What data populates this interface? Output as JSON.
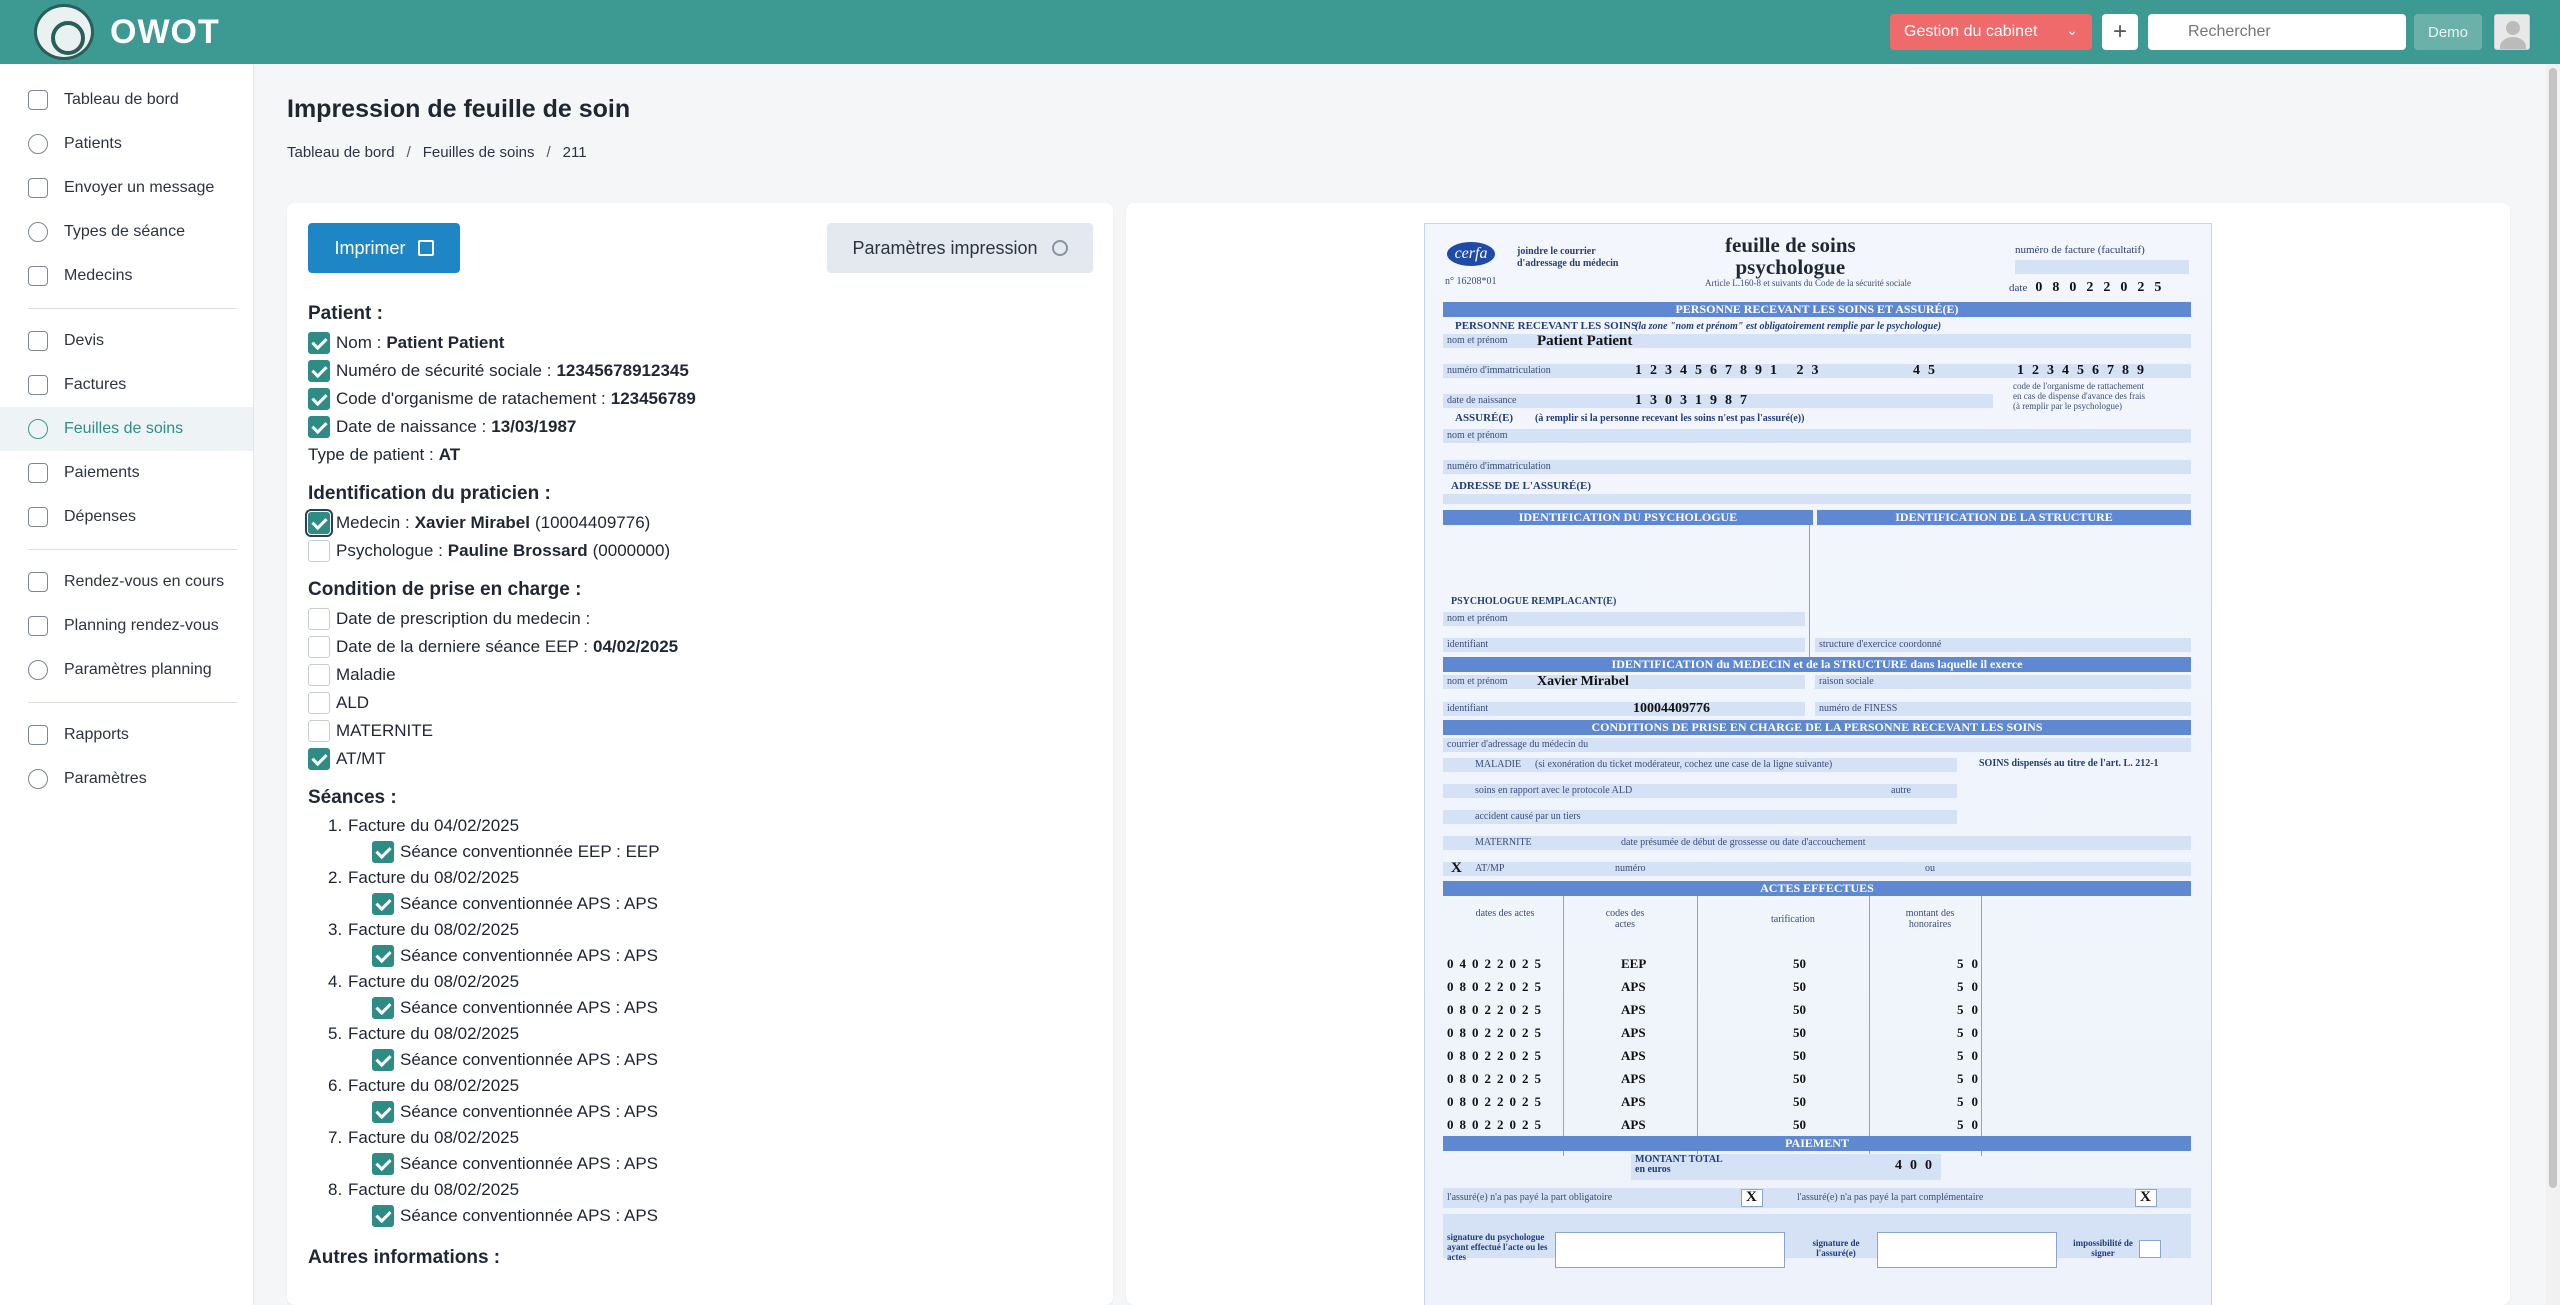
{
  "app": {
    "brand": "OWOT"
  },
  "header": {
    "gestion_label": "Gestion du cabinet",
    "plus_label": "+",
    "search_placeholder": "Rechercher",
    "demo_label": "Demo"
  },
  "sidebar": {
    "items": [
      {
        "label": "Tableau de bord",
        "icon": "home-icon"
      },
      {
        "label": "Patients",
        "icon": "user-icon"
      },
      {
        "label": "Envoyer un message",
        "icon": "mail-icon"
      },
      {
        "label": "Types de séance",
        "icon": "star-icon"
      },
      {
        "label": "Medecins",
        "icon": "graduation-cap-icon"
      },
      {
        "label": "Devis",
        "icon": "document-icon"
      },
      {
        "label": "Factures",
        "icon": "file-icon"
      },
      {
        "label": "Feuilles de soins",
        "icon": "share-icon"
      },
      {
        "label": "Paiements",
        "icon": "receipt-icon"
      },
      {
        "label": "Dépenses",
        "icon": "clipboard-icon"
      },
      {
        "label": "Rendez-vous en cours",
        "icon": "calendar-icon"
      },
      {
        "label": "Planning rendez-vous",
        "icon": "calendar-icon"
      },
      {
        "label": "Paramètres planning",
        "icon": "gear-icon"
      },
      {
        "label": "Rapports",
        "icon": "bar-chart-icon"
      },
      {
        "label": "Paramètres",
        "icon": "gear-icon"
      }
    ]
  },
  "page": {
    "title": "Impression de feuille de soin",
    "breadcrumb": [
      "Tableau de bord",
      "Feuilles de soins",
      "211"
    ],
    "print_label": "Imprimer",
    "params_label": "Paramètres impression"
  },
  "form": {
    "patient": {
      "title": "Patient :",
      "nom_label": "Nom :",
      "nom_value": "Patient Patient",
      "nss_label": "Numéro de sécurité sociale :",
      "nss_value": "12345678912345",
      "org_label": "Code d'organisme de ratachement :",
      "org_value": "123456789",
      "dob_label": "Date de naissance :",
      "dob_value": "13/03/1987",
      "type_label": "Type de patient :",
      "type_value": "AT"
    },
    "praticien": {
      "title": "Identification du praticien :",
      "medecin_label": "Medecin :",
      "medecin_value": "Xavier Mirabel",
      "medecin_id": "(10004409776)",
      "psy_label": "Psychologue :",
      "psy_value": "Pauline Brossard",
      "psy_id": "(0000000)"
    },
    "condition": {
      "title": "Condition de prise en charge :",
      "prescription_label": "Date de prescription du medecin :",
      "derniere_label": "Date de la derniere séance EEP :",
      "derniere_value": "04/02/2025",
      "maladie": "Maladie",
      "ald": "ALD",
      "maternite": "MATERNITE",
      "atmt": "AT/MT"
    },
    "seances": {
      "title": "Séances :",
      "items": [
        {
          "num": "1.",
          "facture": "Facture du 04/02/2025",
          "seance": "Séance conventionnée EEP : EEP"
        },
        {
          "num": "2.",
          "facture": "Facture du 08/02/2025",
          "seance": "Séance conventionnée APS : APS"
        },
        {
          "num": "3.",
          "facture": "Facture du 08/02/2025",
          "seance": "Séance conventionnée APS : APS"
        },
        {
          "num": "4.",
          "facture": "Facture du 08/02/2025",
          "seance": "Séance conventionnée APS : APS"
        },
        {
          "num": "5.",
          "facture": "Facture du 08/02/2025",
          "seance": "Séance conventionnée APS : APS"
        },
        {
          "num": "6.",
          "facture": "Facture du 08/02/2025",
          "seance": "Séance conventionnée APS : APS"
        },
        {
          "num": "7.",
          "facture": "Facture du 08/02/2025",
          "seance": "Séance conventionnée APS : APS"
        },
        {
          "num": "8.",
          "facture": "Facture du 08/02/2025",
          "seance": "Séance conventionnée APS : APS"
        }
      ]
    },
    "autres_title": "Autres informations :"
  },
  "doc": {
    "cerfa": "cerfa",
    "num": "n° 16208*01",
    "joindre_1": "joindre le courrier",
    "joindre_2": "d'adressage du médecin",
    "title_1": "feuille de soins",
    "title_2": "psychologue",
    "article": "Article L.160-8 et suivants du Code de la sécurité sociale",
    "facture_num": "numéro de facture (facultatif)",
    "date_label": "date",
    "date_value": "08022025",
    "band_personne": "PERSONNE RECEVANT LES SOINS ET ASSURÉ(E)",
    "personne_soins": "PERSONNE RECEVANT LES SOINS",
    "personne_note": "(la zone \"nom et prénom\" est obligatoirement remplie par le psychologue)",
    "nom_prenom": "nom et prénom",
    "nom_value": "Patient Patient",
    "immat": "numéro d'immatriculation",
    "immat_value": "1234567891 23",
    "immat_key": "45",
    "org_value": "123456789",
    "org_note_1": "code de l'organisme de rattachement",
    "org_note_2": "en cas de dispense d'avance des frais",
    "org_note_3": "(à remplir par le psychologue)",
    "dob": "date de naissance",
    "dob_value": "13031987",
    "assure": "ASSURÉ(E)",
    "assure_note": "(à remplir si la personne recevant les soins n'est pas l'assuré(e))",
    "adresse": "ADRESSE DE L'ASSURÉ(E)",
    "ident_psy": "IDENTIFICATION DU PSYCHOLOGUE",
    "ident_struct": "IDENTIFICATION DE LA STRUCTURE",
    "psy_rempl": "PSYCHOLOGUE REMPLACANT(E)",
    "identifiant": "identifiant",
    "struct_coord": "structure d'exercice coordonné",
    "band_medecin": "IDENTIFICATION du MEDECIN et de la STRUCTURE dans laquelle il exerce",
    "raison_sociale": "raison sociale",
    "medecin_value": "Xavier Mirabel",
    "medecin_id": "10004409776",
    "finess": "numéro de FINESS",
    "band_conditions": "CONDITIONS DE PRISE EN CHARGE DE LA PERSONNE RECEVANT LES SOINS",
    "courrier": "courrier d'adressage du médecin du",
    "maladie": "MALADIE",
    "maladie_note": "(si exonération du ticket modérateur, cochez une case de la ligne suivante)",
    "soins_dispenses": "SOINS dispensés au titre de l'art. L. 212-1",
    "ald_line": "soins en rapport avec le protocole ALD",
    "autre": "autre",
    "accident": "accident causé par un tiers",
    "maternite": "MATERNITE",
    "maternite_note": "date présumée de début de grossesse ou date d'accouchement",
    "atmp": "AT/MP",
    "numero": "numéro",
    "ou": "ou",
    "x_mark": "X",
    "band_actes": "ACTES EFFECTUES",
    "col_dates": "dates des actes",
    "col_codes": "codes des actes",
    "col_tarif": "tarification",
    "col_montant": "montant des honoraires",
    "rows": [
      {
        "date": "04022025",
        "code": "EEP",
        "tarif": "50",
        "montant": "50"
      },
      {
        "date": "08022025",
        "code": "APS",
        "tarif": "50",
        "montant": "50"
      },
      {
        "date": "08022025",
        "code": "APS",
        "tarif": "50",
        "montant": "50"
      },
      {
        "date": "08022025",
        "code": "APS",
        "tarif": "50",
        "montant": "50"
      },
      {
        "date": "08022025",
        "code": "APS",
        "tarif": "50",
        "montant": "50"
      },
      {
        "date": "08022025",
        "code": "APS",
        "tarif": "50",
        "montant": "50"
      },
      {
        "date": "08022025",
        "code": "APS",
        "tarif": "50",
        "montant": "50"
      },
      {
        "date": "08022025",
        "code": "APS",
        "tarif": "50",
        "montant": "50"
      }
    ],
    "band_paiement": "PAIEMENT",
    "montant_total": "MONTANT TOTAL",
    "en_euros": "en euros",
    "total_value": "400",
    "assure_oblig": "l'assuré(e) n'a pas payé la part obligatoire",
    "assure_compl": "l'assuré(e) n'a pas payé la part complémentaire",
    "sign_psy": "signature du psychologue ayant effectué l'acte ou les actes",
    "sign_assure": "signature de l'assuré(e)",
    "impossibilite": "impossibilité de signer"
  }
}
